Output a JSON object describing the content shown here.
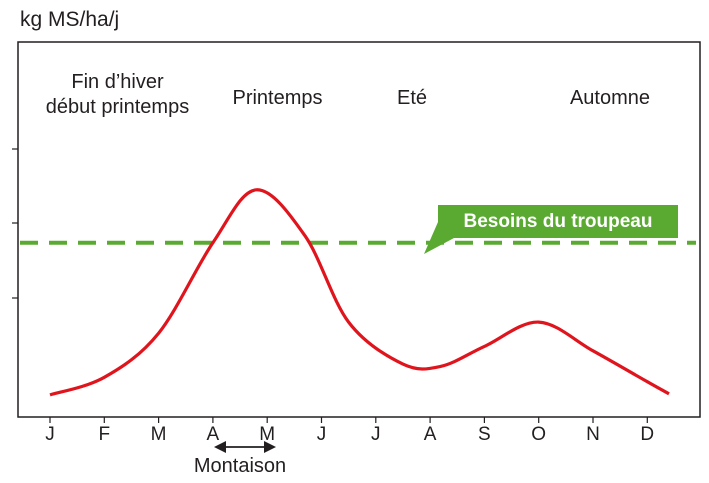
{
  "chart_data": {
    "type": "line",
    "ylabel": "kg MS/ha/j",
    "categories": [
      "J",
      "F",
      "M",
      "A",
      "M",
      "J",
      "J",
      "A",
      "S",
      "O",
      "N",
      "D"
    ],
    "series": [
      {
        "color": "#e0141c",
        "x": [
          0,
          1,
          2,
          3,
          3.8,
          4.7,
          5.5,
          6.5,
          7.2,
          8,
          9,
          10,
          11,
          11.4
        ],
        "y": [
          0,
          0.8,
          2.8,
          6.9,
          9.3,
          7.2,
          3.3,
          1.4,
          1.3,
          2.2,
          3.3,
          2.0,
          0.6,
          0.05
        ]
      }
    ],
    "reference": {
      "label": "Besoins du troupeau",
      "y": 6.9,
      "color": "#5aaa32"
    },
    "yaxis": {
      "tick_labels": false,
      "ylim": [
        -1,
        16
      ]
    },
    "seasons": [
      "Fin d’hiver",
      "début printemps",
      "Printemps",
      "Eté",
      "Automne"
    ],
    "annotation": {
      "label": "Montaison",
      "from": "A",
      "to": "M"
    }
  }
}
